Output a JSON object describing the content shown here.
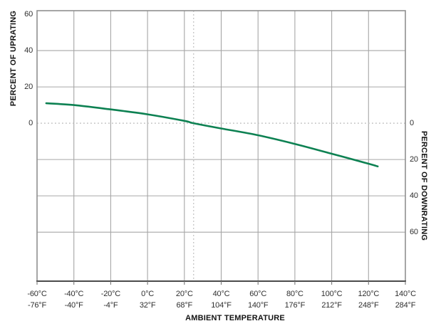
{
  "figure": {
    "background": "#ffffff"
  },
  "chart_data": {
    "type": "line",
    "title": "",
    "xlabel": "AMBIENT TEMPERATURE",
    "ylabel_left": "PERCENT OF UPRATING",
    "ylabel_right": "PERCENT OF DOWNRATING",
    "xlim_celsius": [
      -60,
      140
    ],
    "ylim_percent": [
      -87,
      62
    ],
    "grid": "on",
    "x_ticks": [
      {
        "value": -60,
        "c": "-60°C",
        "f": "-76°F"
      },
      {
        "value": -40,
        "c": "-40°C",
        "f": "-40°F"
      },
      {
        "value": -20,
        "c": "-20°C",
        "f": "-4°F"
      },
      {
        "value": 0,
        "c": "0°C",
        "f": "32°F"
      },
      {
        "value": 20,
        "c": "20°C",
        "f": "68°F"
      },
      {
        "value": 40,
        "c": "40°C",
        "f": "104°F"
      },
      {
        "value": 60,
        "c": "60°C",
        "f": "140°F"
      },
      {
        "value": 80,
        "c": "80°C",
        "f": "176°F"
      },
      {
        "value": 100,
        "c": "100°C",
        "f": "212°F"
      },
      {
        "value": 120,
        "c": "120°C",
        "f": "248°F"
      },
      {
        "value": 140,
        "c": "140°C",
        "f": "284°F"
      }
    ],
    "y_ticks_left": [
      {
        "label": "60",
        "value": 60
      },
      {
        "label": "40",
        "value": 40
      },
      {
        "label": "20",
        "value": 20
      },
      {
        "label": "0",
        "value": 0
      }
    ],
    "y_ticks_right": [
      {
        "label": "0",
        "downrating": 0
      },
      {
        "label": "20",
        "downrating": 20
      },
      {
        "label": "40",
        "downrating": 40
      },
      {
        "label": "60",
        "downrating": 60
      }
    ],
    "horizontal_gridline_values": [
      40,
      20,
      -20,
      -40,
      -60
    ],
    "vertical_gridline_values": [
      -40,
      -20,
      0,
      20,
      40,
      60,
      80,
      100,
      120
    ],
    "reference_lines": {
      "zero_percent_dashed": 0,
      "ambient_dashed_celsius": 25
    },
    "series": [
      {
        "name": "rating-curve",
        "color": "#0d8152",
        "points": [
          {
            "temp_c": -55,
            "percent": 11.0
          },
          {
            "temp_c": -40,
            "percent": 10.0
          },
          {
            "temp_c": -20,
            "percent": 7.6
          },
          {
            "temp_c": 0,
            "percent": 4.9
          },
          {
            "temp_c": 20,
            "percent": 1.3
          },
          {
            "temp_c": 25,
            "percent": 0.0
          },
          {
            "temp_c": 40,
            "percent": -2.9
          },
          {
            "temp_c": 60,
            "percent": -6.6
          },
          {
            "temp_c": 80,
            "percent": -11.4
          },
          {
            "temp_c": 100,
            "percent": -16.8
          },
          {
            "temp_c": 120,
            "percent": -22.3
          },
          {
            "temp_c": 125,
            "percent": -23.8
          }
        ]
      }
    ],
    "colors": {
      "grid": "#a6a6a6",
      "frame": "#8f8f8f",
      "axis_bottom": "#4b4b4b",
      "dashed": "#c2c2c2",
      "tick_mark": "#777777",
      "curve": "#0d8152",
      "tick_text": "#2f2f2f",
      "title_text": "#141414"
    }
  }
}
